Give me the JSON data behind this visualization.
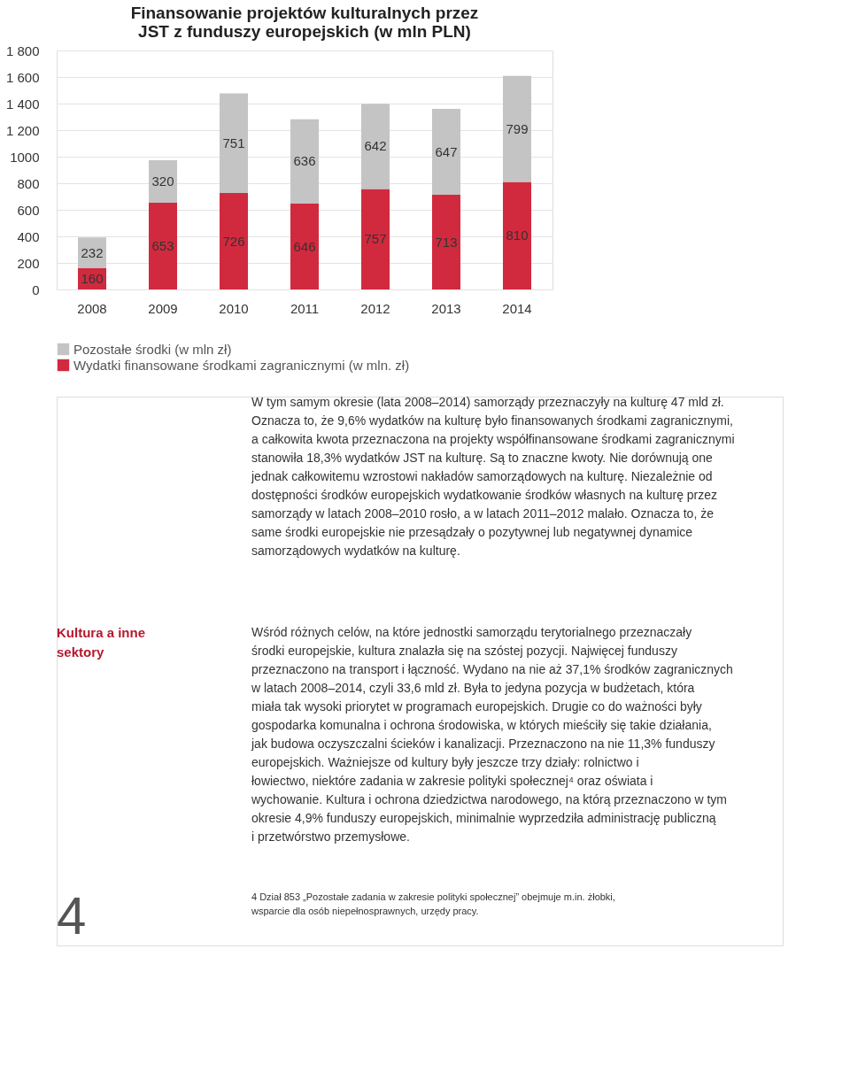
{
  "chart_data": {
    "type": "bar",
    "title": "Finansowanie projektów kulturalnych przez JST z funduszy europejskich (w mln PLN)",
    "categories": [
      "2008",
      "2009",
      "2010",
      "2011",
      "2012",
      "2013",
      "2014"
    ],
    "stacked": true,
    "series": [
      {
        "name": "Wydatki finansowane środkami zagranicznymi (w mln. zł)",
        "color": "#d12a3e",
        "values": [
          160,
          653,
          726,
          646,
          757,
          713,
          810
        ]
      },
      {
        "name": "Pozostałe środki (w mln zł)",
        "color": "#c4c4c4",
        "values": [
          232,
          320,
          751,
          636,
          642,
          647,
          799
        ]
      }
    ],
    "ylim": [
      0,
      1800
    ],
    "yticks": [
      0,
      200,
      400,
      600,
      800,
      {
        "value": 1000,
        "label": "1000"
      },
      {
        "value": 1200,
        "label": "1 200"
      },
      {
        "value": 1400,
        "label": "1 400"
      },
      {
        "value": 1600,
        "label": "1 600"
      },
      {
        "value": 1800,
        "label": "1 800"
      }
    ],
    "grid": "y",
    "legend": "bottom left",
    "data_labels": true,
    "annotations": [
      "W tym samym okresie (lata 2008–2014) samorządy przeznaczyły na kulturę 47 mld zł. Oznacza to, że 9,6% wydatków na kulturę było finansowanych środkami zagranicznymi, a całkowita kwota przeznaczona na projekty współfinansowane środkami zagranicznymi stanowiła 18,3% wydatków JST na kulturę. Są to znaczne kwoty. Nie dorównują one jednak całkowitemu wzrostowi nakładów samorządowych na kulturę. Niezależnie od dostępności środków europejskich wydatkowanie środków własnych na kulturę przez samorządy w latach 2008–2010 rosło, a w latach 2011–2012 malało. Oznacza to, że same środki europejskie nie przesądzały o pozytywnej lub negatywnej dynamice samorządowych wydatków na kulturę.",
      "Kultura a inne sektory",
      "Wśród różnych celów, na które jednostki samorządu terytorialnego przeznaczały środki europejskie, kultura znalazła się na szóstej pozycji. Najwięcej funduszy przeznaczono na transport i łączność. Wydano na nie aż 37,1% środków zagranicznych w latach 2008–2014, czyli 33,6 mld zł. Była to jedyna pozycja w budżetach, która miała tak wysoki priorytet w programach europejskich. Drugie co do ważności były gospodarka komunalna i ochrona środowiska, w których mieściły się takie działania, jak budowa oczyszczalni ścieków i kanalizacji. Przeznaczono na nie 11,3% funduszy europejskich. Ważniejsze od kultury były jeszcze trzy działy: rolnictwo i łowiectwo, niektóre zadania w zakresie polityki społecznej⁴ oraz oświata i wychowanie. Kultura i ochrona dziedzictwa narodowego, na którą przeznaczono w tym okresie 4,9% funduszy europejskich, minimalnie wyprzedziła administrację publiczną i przetwórstwo przemysłowe.",
      "4    Dział 853 „Pozostałe zadania w zakresie polityki społecznej” obejmuje m.in. żłobki, wsparcie dla osób niepełnosprawnych, urzędy pracy.",
      "4"
    ]
  }
}
